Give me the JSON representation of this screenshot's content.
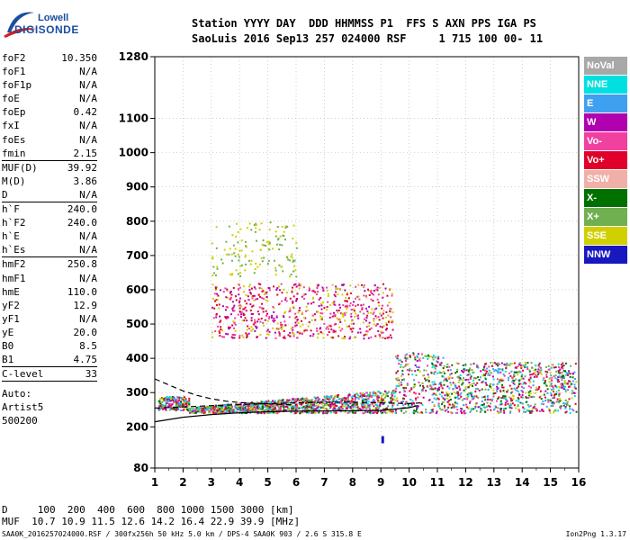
{
  "logo": {
    "line1": "Lowell",
    "line2": "DIGISONDE"
  },
  "header": {
    "row1": "Station YYYY DAY  DDD HHMMSS P1  FFS S AXN PPS IGA PS",
    "row2": "SaoLuis 2016 Sep13 257 024000 RSF     1 715 100 00- 11"
  },
  "params": [
    {
      "name": "foF2",
      "value": "10.350"
    },
    {
      "name": "foF1",
      "value": "N/A"
    },
    {
      "name": "foF1p",
      "value": "N/A"
    },
    {
      "name": "foE",
      "value": "N/A"
    },
    {
      "name": "foEp",
      "value": "0.42"
    },
    {
      "name": "fxI",
      "value": "N/A"
    },
    {
      "name": "foEs",
      "value": "N/A"
    },
    {
      "name": "fmin",
      "value": "2.15"
    },
    {
      "name": "MUF(D)",
      "value": "39.92"
    },
    {
      "name": "M(D)",
      "value": "3.86"
    },
    {
      "name": "D",
      "value": "N/A"
    },
    {
      "name": "h`F",
      "value": "240.0"
    },
    {
      "name": "h`F2",
      "value": "240.0"
    },
    {
      "name": "h`E",
      "value": "N/A"
    },
    {
      "name": "h`Es",
      "value": "N/A"
    },
    {
      "name": "hmF2",
      "value": "250.8"
    },
    {
      "name": "hmF1",
      "value": "N/A"
    },
    {
      "name": "hmE",
      "value": "110.0"
    },
    {
      "name": "yF2",
      "value": "12.9"
    },
    {
      "name": "yF1",
      "value": "N/A"
    },
    {
      "name": "yE",
      "value": "20.0"
    },
    {
      "name": "B0",
      "value": "8.5"
    },
    {
      "name": "B1",
      "value": "4.75"
    },
    {
      "name": "C-level",
      "value": "33"
    }
  ],
  "auto": {
    "line1": "Auto:",
    "line2": "Artist5",
    "line3": "500200"
  },
  "legend": [
    {
      "label": "NoVal",
      "color": "#a8a8a8"
    },
    {
      "label": "NNE",
      "color": "#00e0e0"
    },
    {
      "label": "E",
      "color": "#40a0f0"
    },
    {
      "label": "W",
      "color": "#b000b0"
    },
    {
      "label": "Vo-",
      "color": "#f040a0"
    },
    {
      "label": "Vo+",
      "color": "#e0002a"
    },
    {
      "label": "SSW",
      "color": "#f0b0a8"
    },
    {
      "label": "X-",
      "color": "#007000"
    },
    {
      "label": "X+",
      "color": "#70b050"
    },
    {
      "label": "SSE",
      "color": "#d0d000"
    },
    {
      "label": "NNW",
      "color": "#1818c0"
    }
  ],
  "footer": {
    "d_row": "D     100  200  400  600  800 1000 1500 3000 [km]",
    "muf_row": "MUF  10.7 10.9 11.5 12.6 14.2 16.4 22.9 39.9 [MHz]",
    "file_row": "SAA0K_2016257024000.RSF / 300fx256h 50 kHz 5.0 km / DPS-4 SAA0K 903 / 2.6 S 315.8 E",
    "version": "Ion2Png 1.3.17"
  },
  "chart_data": {
    "type": "scatter",
    "xlim": [
      1,
      16
    ],
    "ylim": [
      80,
      1280
    ],
    "x_ticks": [
      1,
      2,
      3,
      4,
      5,
      6,
      7,
      8,
      9,
      10,
      11,
      12,
      13,
      14,
      15,
      16
    ],
    "y_ticks": [
      80,
      200,
      300,
      400,
      500,
      600,
      700,
      800,
      900,
      1000,
      1100,
      1280
    ],
    "series": [
      {
        "region": "F-trace",
        "x_range": [
          1.1,
          15.9
        ],
        "y_range": [
          240,
          420
        ],
        "colors": [
          "#e0002a",
          "#d0d000",
          "#f040a0",
          "#b000b0",
          "#70b050",
          "#40a0f0",
          "#00e0e0",
          "#007000"
        ]
      },
      {
        "region": "second-hop",
        "x_range": [
          3.0,
          9.4
        ],
        "y_range": [
          460,
          620
        ],
        "colors": [
          "#b000b0",
          "#f040a0",
          "#d0d000",
          "#e0002a"
        ]
      },
      {
        "region": "scattered",
        "x_range": [
          3.0,
          6.0
        ],
        "y_range": [
          640,
          800
        ],
        "colors": [
          "#d0d000",
          "#70b050"
        ]
      }
    ],
    "fitted_curves": [
      {
        "name": "lower",
        "points": [
          [
            1,
            215
          ],
          [
            2,
            228
          ],
          [
            3,
            236
          ],
          [
            4,
            241
          ],
          [
            5,
            244
          ],
          [
            6,
            246
          ],
          [
            8,
            247
          ],
          [
            9,
            248
          ],
          [
            10,
            256
          ],
          [
            10.3,
            262
          ]
        ]
      },
      {
        "name": "upper-dash",
        "points": [
          [
            1,
            340
          ],
          [
            1.5,
            322
          ],
          [
            2,
            305
          ],
          [
            2.5,
            292
          ],
          [
            3,
            282
          ],
          [
            3.5,
            275
          ],
          [
            4,
            271
          ],
          [
            5,
            267
          ],
          [
            6,
            264
          ]
        ]
      },
      {
        "name": "dash2",
        "points": [
          [
            1,
            255
          ],
          [
            2,
            258
          ],
          [
            3,
            262
          ],
          [
            4,
            265
          ],
          [
            5,
            268
          ],
          [
            6,
            270
          ],
          [
            7,
            272
          ],
          [
            8,
            272
          ],
          [
            9,
            270
          ],
          [
            10,
            268
          ],
          [
            10.4,
            270
          ]
        ]
      }
    ],
    "markers": [
      {
        "x": 9.05,
        "y": 160,
        "color": "#1818c0"
      }
    ]
  }
}
